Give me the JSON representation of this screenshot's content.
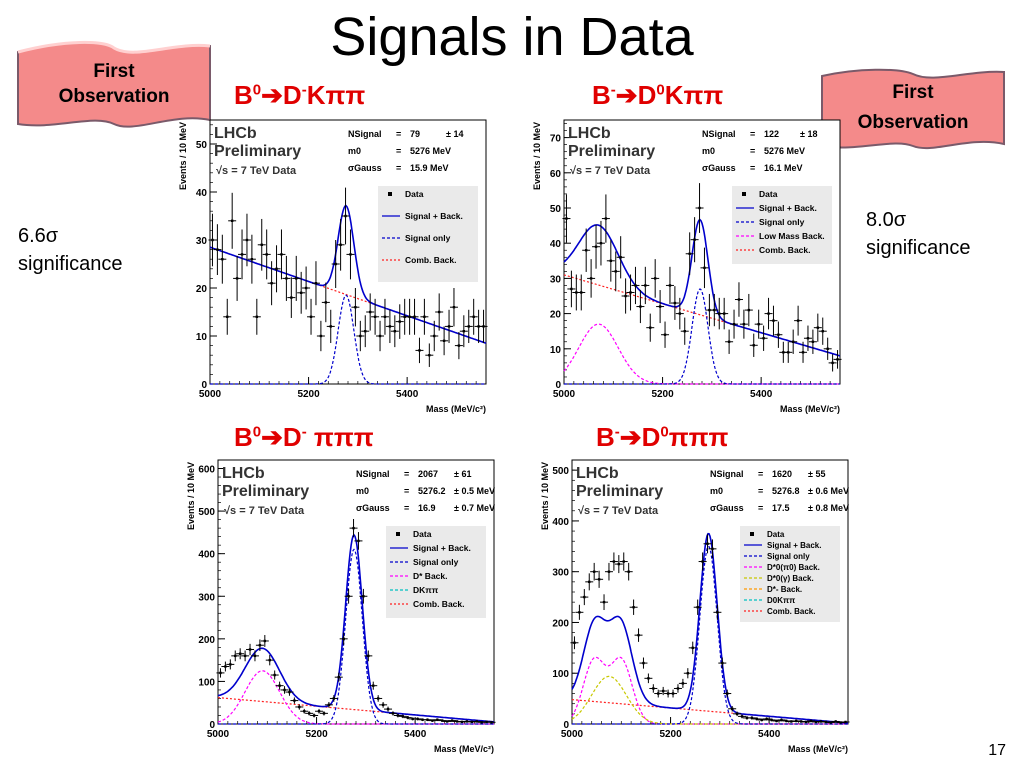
{
  "title": "Signals in Data",
  "page_number": "17",
  "banners": {
    "left": {
      "line1": "First",
      "line2": "Observation"
    },
    "right": {
      "line1": "First",
      "line2": "Observation"
    }
  },
  "significance": {
    "left": {
      "value": "6.6σ",
      "word": "significance"
    },
    "right": {
      "value": "8.0σ",
      "word": "significance"
    }
  },
  "decays": {
    "p1": {
      "a": "B",
      "a_sup": "0",
      "b": "D",
      "b_sup": "-",
      "c": "Kππ"
    },
    "p2": {
      "a": "B",
      "a_sup": "-",
      "b": "D",
      "b_sup": "0",
      "c": "Kππ"
    },
    "p3": {
      "a": "B",
      "a_sup": "0",
      "b": "D",
      "b_sup": "-",
      "c": " πππ"
    },
    "p4": {
      "a": "B",
      "a_sup": "-",
      "b": "D",
      "b_sup": "0",
      "c": "πππ"
    }
  },
  "colors": {
    "accent_red": "#e00000",
    "banner_fill": "#f48a8a",
    "signal_back": "#0000cc",
    "comb_back": "#ff2020",
    "low_mass": "#ff00ff",
    "dkpipi": "#00c0c0",
    "dstar_gamma": "#c8c800"
  },
  "chart_data": [
    {
      "type": "scatter",
      "id": "p1",
      "watermark": [
        "LHCb",
        "Preliminary",
        "√s = 7 TeV Data"
      ],
      "stats": [
        [
          "NSignal",
          "=",
          "79",
          "± 14"
        ],
        [
          "m0",
          "=",
          "5276 MeV",
          ""
        ],
        [
          "σGauss",
          "=",
          "15.9 MeV",
          ""
        ]
      ],
      "legend": [
        "Data",
        "Signal + Back.",
        "Signal only",
        "Comb. Back."
      ],
      "xlabel": "Mass (MeV/c²)",
      "ylabel": "Events / 10 MeV",
      "xlim": [
        5000,
        5560
      ],
      "ylim": [
        0,
        55
      ],
      "xticks": [
        5000,
        5200,
        5400
      ],
      "yticks": [
        0,
        10,
        20,
        30,
        40,
        50
      ],
      "peak": {
        "mean": 5276,
        "sigma": 15.9,
        "amp": 18.5
      },
      "comb": {
        "y0": 28.5,
        "y1": 8.5
      },
      "lowmass": null,
      "data": [
        [
          5005,
          30
        ],
        [
          5015,
          28
        ],
        [
          5025,
          26
        ],
        [
          5035,
          14
        ],
        [
          5045,
          34
        ],
        [
          5055,
          22
        ],
        [
          5065,
          27
        ],
        [
          5075,
          30
        ],
        [
          5085,
          26
        ],
        [
          5095,
          14
        ],
        [
          5105,
          29
        ],
        [
          5115,
          27
        ],
        [
          5125,
          21
        ],
        [
          5135,
          24
        ],
        [
          5145,
          27
        ],
        [
          5155,
          22
        ],
        [
          5165,
          18
        ],
        [
          5175,
          22
        ],
        [
          5185,
          19
        ],
        [
          5195,
          20
        ],
        [
          5205,
          14
        ],
        [
          5215,
          21
        ],
        [
          5225,
          10
        ],
        [
          5235,
          17
        ],
        [
          5245,
          12
        ],
        [
          5255,
          25
        ],
        [
          5265,
          29
        ],
        [
          5275,
          35
        ],
        [
          5285,
          27
        ],
        [
          5295,
          16
        ],
        [
          5305,
          10
        ],
        [
          5315,
          11
        ],
        [
          5325,
          15
        ],
        [
          5335,
          14
        ],
        [
          5345,
          10
        ],
        [
          5355,
          14
        ],
        [
          5365,
          12
        ],
        [
          5375,
          11
        ],
        [
          5385,
          13
        ],
        [
          5395,
          14
        ],
        [
          5405,
          14
        ],
        [
          5415,
          14
        ],
        [
          5425,
          7
        ],
        [
          5435,
          14
        ],
        [
          5445,
          6
        ],
        [
          5455,
          10
        ],
        [
          5465,
          15
        ],
        [
          5475,
          9
        ],
        [
          5485,
          12
        ],
        [
          5495,
          16
        ],
        [
          5505,
          8
        ],
        [
          5515,
          11
        ],
        [
          5525,
          12
        ],
        [
          5535,
          14
        ],
        [
          5545,
          12
        ],
        [
          5555,
          12
        ]
      ]
    },
    {
      "type": "scatter",
      "id": "p2",
      "watermark": [
        "LHCb",
        "Preliminary",
        "√s = 7 TeV Data"
      ],
      "stats": [
        [
          "NSignal",
          "=",
          "122",
          "± 18"
        ],
        [
          "m0",
          "=",
          "5276 MeV",
          ""
        ],
        [
          "σGauss",
          "=",
          "16.1 MeV",
          ""
        ]
      ],
      "legend": [
        "Data",
        "Signal + Back.",
        "Signal only",
        "Low Mass Back.",
        "Comb. Back."
      ],
      "xlabel": "Mass (MeV/c²)",
      "ylabel": "Events / 10 MeV",
      "xlim": [
        5000,
        5560
      ],
      "ylim": [
        0,
        75
      ],
      "xticks": [
        5000,
        5200,
        5400
      ],
      "yticks": [
        0,
        10,
        20,
        30,
        40,
        50,
        60,
        70
      ],
      "peak": {
        "mean": 5276,
        "sigma": 16.1,
        "amp": 27
      },
      "comb": {
        "y0": 31,
        "y1": 8
      },
      "lowmass": {
        "mean": 5070,
        "sigma": 40,
        "amp": 17
      },
      "data": [
        [
          5005,
          47
        ],
        [
          5015,
          27
        ],
        [
          5025,
          26
        ],
        [
          5035,
          26
        ],
        [
          5045,
          38
        ],
        [
          5055,
          30
        ],
        [
          5065,
          39
        ],
        [
          5075,
          40
        ],
        [
          5085,
          47
        ],
        [
          5095,
          35
        ],
        [
          5105,
          32
        ],
        [
          5115,
          36
        ],
        [
          5125,
          25
        ],
        [
          5135,
          26
        ],
        [
          5145,
          28
        ],
        [
          5155,
          22
        ],
        [
          5165,
          28
        ],
        [
          5175,
          16
        ],
        [
          5185,
          30
        ],
        [
          5195,
          22
        ],
        [
          5205,
          14
        ],
        [
          5215,
          28
        ],
        [
          5225,
          23
        ],
        [
          5235,
          20
        ],
        [
          5245,
          15
        ],
        [
          5255,
          37
        ],
        [
          5265,
          41
        ],
        [
          5275,
          50
        ],
        [
          5285,
          33
        ],
        [
          5295,
          21
        ],
        [
          5305,
          21
        ],
        [
          5315,
          20
        ],
        [
          5325,
          20
        ],
        [
          5335,
          12
        ],
        [
          5345,
          17
        ],
        [
          5355,
          24
        ],
        [
          5365,
          17
        ],
        [
          5375,
          21
        ],
        [
          5385,
          11
        ],
        [
          5395,
          17
        ],
        [
          5405,
          13
        ],
        [
          5415,
          20
        ],
        [
          5425,
          18
        ],
        [
          5435,
          14
        ],
        [
          5445,
          9
        ],
        [
          5455,
          9
        ],
        [
          5465,
          12
        ],
        [
          5475,
          18
        ],
        [
          5485,
          9
        ],
        [
          5495,
          13
        ],
        [
          5505,
          12
        ],
        [
          5515,
          16
        ],
        [
          5525,
          15
        ],
        [
          5535,
          10
        ],
        [
          5545,
          6
        ],
        [
          5555,
          7
        ]
      ]
    },
    {
      "type": "scatter",
      "id": "p3",
      "watermark": [
        "LHCb",
        "Preliminary",
        "√s = 7 TeV Data"
      ],
      "stats": [
        [
          "NSignal",
          "=",
          "2067",
          "± 61"
        ],
        [
          "m0",
          "=",
          "5276.2",
          "± 0.5 MeV"
        ],
        [
          "σGauss",
          "=",
          "16.9",
          "± 0.7 MeV"
        ]
      ],
      "legend": [
        "Data",
        "Signal + Back.",
        "Signal only",
        "D* Back.",
        "DKππ",
        "Comb. Back."
      ],
      "xlabel": "Mass (MeV/c²)",
      "ylabel": "Events / 10 MeV",
      "xlim": [
        5000,
        5560
      ],
      "ylim": [
        0,
        620
      ],
      "xticks": [
        5000,
        5200,
        5400
      ],
      "yticks": [
        0,
        100,
        200,
        300,
        400,
        500,
        600
      ],
      "peak": {
        "mean": 5276,
        "sigma": 16.9,
        "amp": 410
      },
      "comb": {
        "y0": 62,
        "y1": 5
      },
      "lowmass": {
        "mean": 5090,
        "sigma": 35,
        "amp": 125
      },
      "data": [
        [
          5005,
          120
        ],
        [
          5015,
          135
        ],
        [
          5025,
          140
        ],
        [
          5035,
          160
        ],
        [
          5045,
          165
        ],
        [
          5055,
          160
        ],
        [
          5065,
          175
        ],
        [
          5075,
          160
        ],
        [
          5085,
          185
        ],
        [
          5095,
          195
        ],
        [
          5105,
          150
        ],
        [
          5115,
          115
        ],
        [
          5125,
          90
        ],
        [
          5135,
          80
        ],
        [
          5145,
          75
        ],
        [
          5155,
          55
        ],
        [
          5165,
          40
        ],
        [
          5175,
          30
        ],
        [
          5185,
          25
        ],
        [
          5195,
          20
        ],
        [
          5205,
          30
        ],
        [
          5215,
          25
        ],
        [
          5225,
          45
        ],
        [
          5235,
          60
        ],
        [
          5245,
          110
        ],
        [
          5255,
          200
        ],
        [
          5265,
          300
        ],
        [
          5275,
          460
        ],
        [
          5285,
          430
        ],
        [
          5295,
          300
        ],
        [
          5305,
          160
        ],
        [
          5315,
          90
        ],
        [
          5325,
          60
        ],
        [
          5335,
          45
        ],
        [
          5345,
          35
        ],
        [
          5355,
          25
        ],
        [
          5365,
          20
        ],
        [
          5375,
          18
        ],
        [
          5385,
          15
        ],
        [
          5395,
          12
        ],
        [
          5405,
          12
        ],
        [
          5415,
          10
        ],
        [
          5425,
          10
        ],
        [
          5435,
          8
        ],
        [
          5445,
          10
        ],
        [
          5455,
          8
        ],
        [
          5465,
          6
        ],
        [
          5475,
          8
        ],
        [
          5485,
          6
        ],
        [
          5495,
          5
        ],
        [
          5505,
          6
        ],
        [
          5515,
          5
        ],
        [
          5525,
          6
        ],
        [
          5535,
          4
        ],
        [
          5545,
          5
        ],
        [
          5555,
          4
        ]
      ]
    },
    {
      "type": "scatter",
      "id": "p4",
      "watermark": [
        "LHCb",
        "Preliminary",
        "√s = 7 TeV Data"
      ],
      "stats": [
        [
          "NSignal",
          "=",
          "1620",
          "± 55"
        ],
        [
          "m0",
          "=",
          "5276.8",
          "± 0.6 MeV"
        ],
        [
          "σGauss",
          "=",
          "17.5",
          "± 0.8 MeV"
        ]
      ],
      "legend": [
        "Data",
        "Signal + Back.",
        "Signal only",
        "D*0(π0) Back.",
        "D*0(γ) Back.",
        "D*- Back.",
        "D0Kππ",
        "Comb. Back."
      ],
      "xlabel": "Mass (MeV/c²)",
      "ylabel": "Events / 10 MeV",
      "xlim": [
        5000,
        5560
      ],
      "ylim": [
        0,
        520
      ],
      "xticks": [
        5000,
        5200,
        5400
      ],
      "yticks": [
        0,
        100,
        200,
        300,
        400,
        500
      ],
      "peak": {
        "mean": 5277,
        "sigma": 17.5,
        "amp": 350
      },
      "comb": {
        "y0": 48,
        "y1": 2
      },
      "lowmass": {
        "mean": 5045,
        "sigma": 22,
        "amp": 125,
        "mean2": 5100,
        "amp2": 125
      },
      "data": [
        [
          5005,
          160
        ],
        [
          5015,
          220
        ],
        [
          5025,
          250
        ],
        [
          5035,
          280
        ],
        [
          5045,
          300
        ],
        [
          5055,
          285
        ],
        [
          5065,
          240
        ],
        [
          5075,
          300
        ],
        [
          5085,
          320
        ],
        [
          5095,
          315
        ],
        [
          5105,
          320
        ],
        [
          5115,
          300
        ],
        [
          5125,
          230
        ],
        [
          5135,
          175
        ],
        [
          5145,
          120
        ],
        [
          5155,
          90
        ],
        [
          5165,
          70
        ],
        [
          5175,
          60
        ],
        [
          5185,
          65
        ],
        [
          5195,
          60
        ],
        [
          5205,
          60
        ],
        [
          5215,
          70
        ],
        [
          5225,
          80
        ],
        [
          5235,
          100
        ],
        [
          5245,
          150
        ],
        [
          5255,
          230
        ],
        [
          5265,
          320
        ],
        [
          5275,
          355
        ],
        [
          5285,
          345
        ],
        [
          5295,
          220
        ],
        [
          5305,
          120
        ],
        [
          5315,
          60
        ],
        [
          5325,
          30
        ],
        [
          5335,
          20
        ],
        [
          5345,
          15
        ],
        [
          5355,
          12
        ],
        [
          5365,
          12
        ],
        [
          5375,
          10
        ],
        [
          5385,
          8
        ],
        [
          5395,
          10
        ],
        [
          5405,
          8
        ],
        [
          5415,
          6
        ],
        [
          5425,
          8
        ],
        [
          5435,
          6
        ],
        [
          5445,
          5
        ],
        [
          5455,
          6
        ],
        [
          5465,
          5
        ],
        [
          5475,
          4
        ],
        [
          5485,
          6
        ],
        [
          5495,
          4
        ],
        [
          5505,
          5
        ],
        [
          5515,
          4
        ],
        [
          5525,
          3
        ],
        [
          5535,
          5
        ],
        [
          5545,
          3
        ],
        [
          5555,
          4
        ]
      ]
    }
  ]
}
